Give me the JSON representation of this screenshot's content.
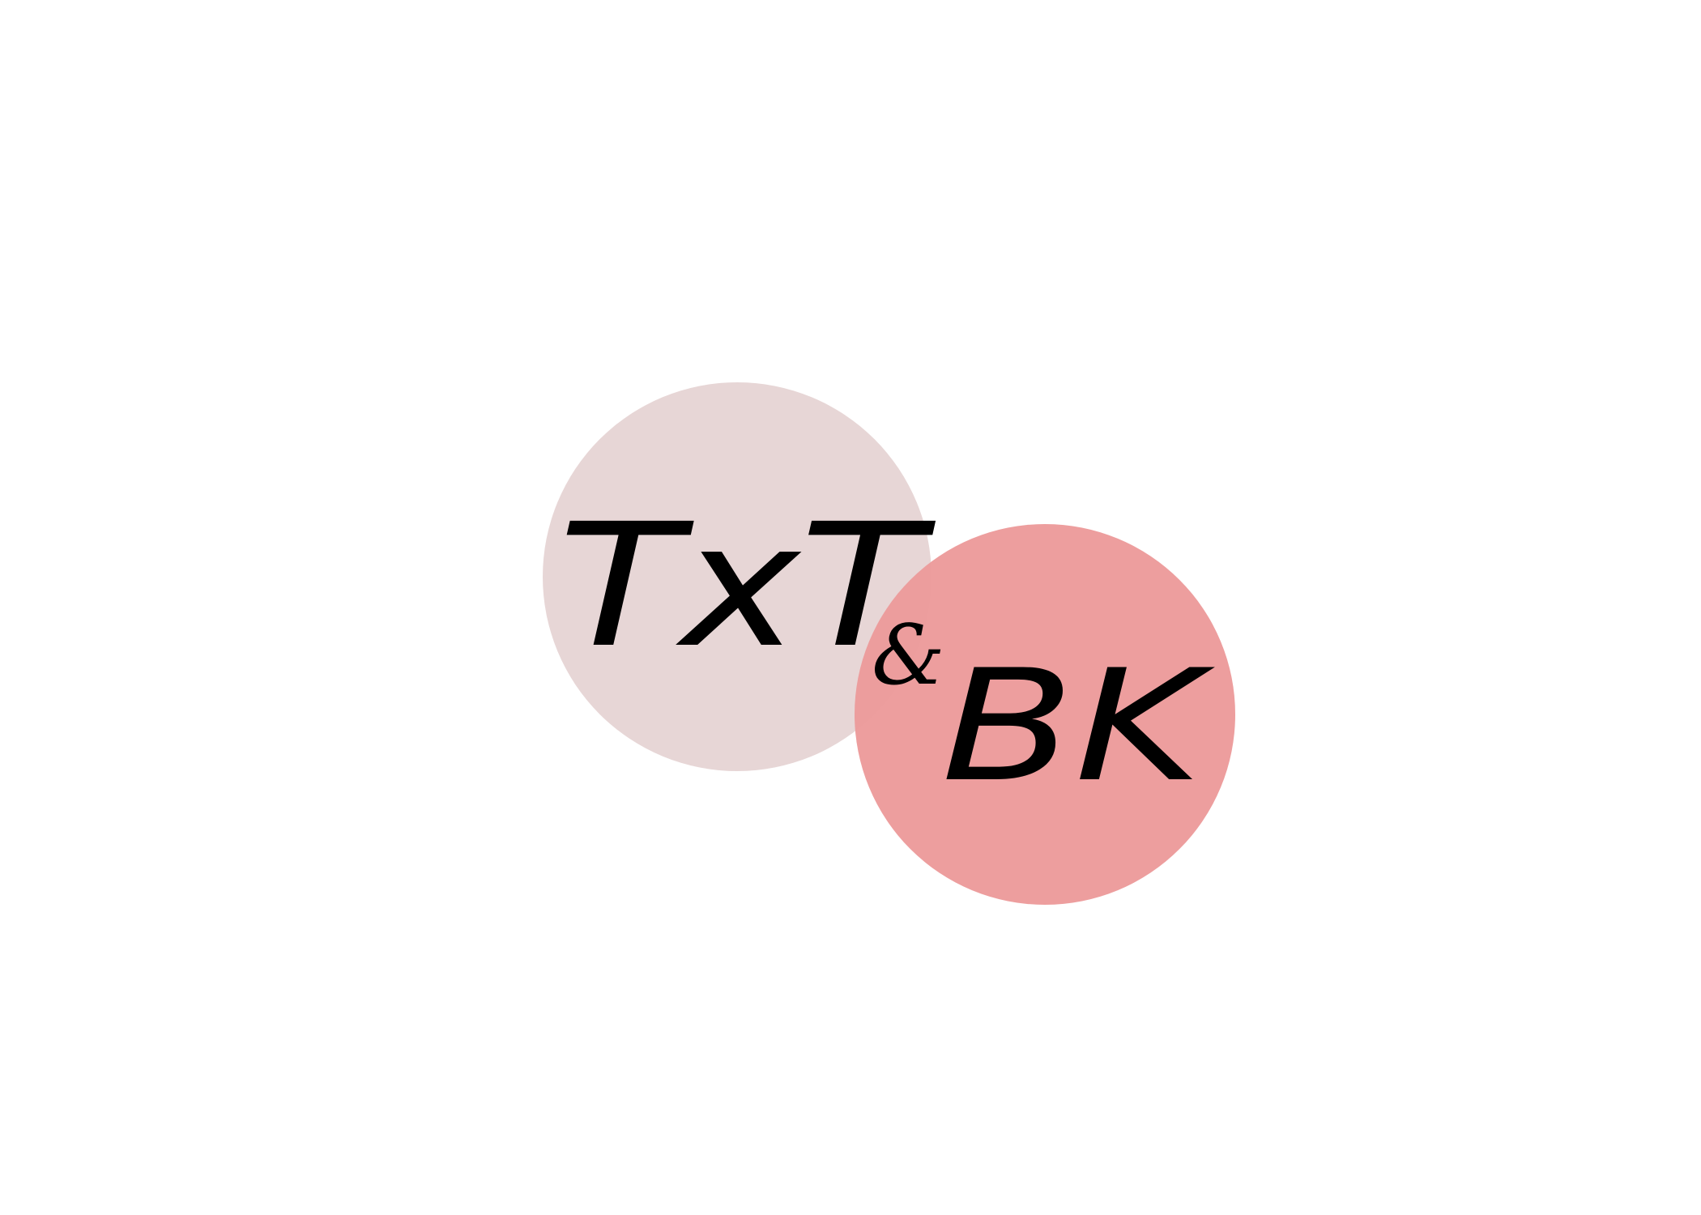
{
  "logo": {
    "wordmark_lines": [
      "TxT",
      "&",
      "BK"
    ],
    "colors": {
      "background": "#ffffff",
      "left_circle": "#e6d4d4",
      "right_circle": "#ec9a9a",
      "text": "#000000"
    }
  }
}
